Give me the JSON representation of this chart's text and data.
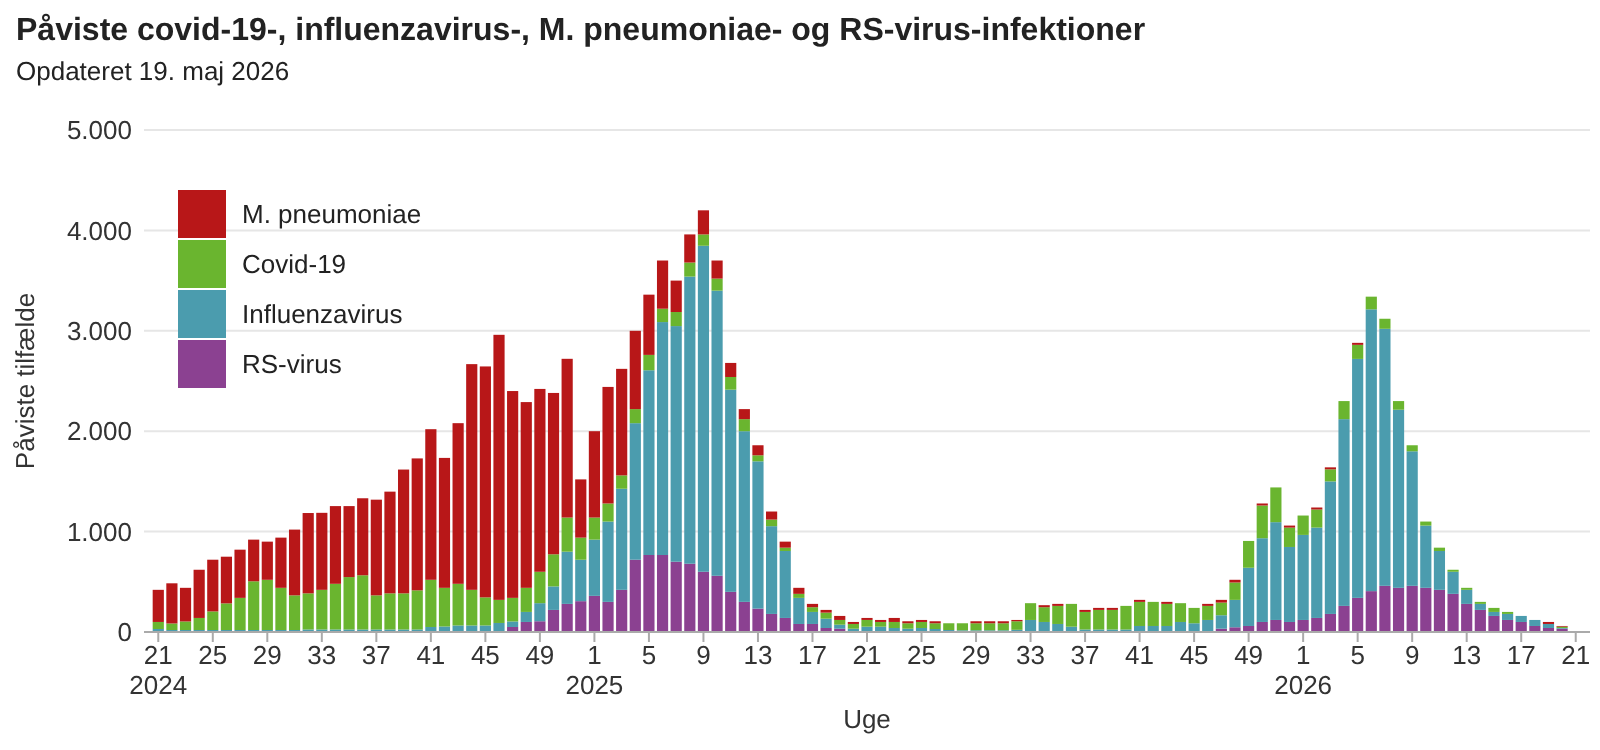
{
  "chart_data": {
    "type": "bar",
    "stacked": true,
    "title": "Påviste covid-19-, influenzavirus-, M. pneumoniae- og RS-virus-infektioner",
    "subtitle": "Opdateret 19. maj 2026",
    "xlabel": "Uge",
    "ylabel": "Påviste tilfælde",
    "categories": [
      "21\n2024",
      null,
      null,
      null,
      "25",
      null,
      null,
      null,
      "29",
      null,
      null,
      null,
      "33",
      null,
      null,
      null,
      "37",
      null,
      null,
      null,
      "41",
      null,
      null,
      null,
      "45",
      null,
      null,
      null,
      "49",
      null,
      null,
      null,
      "1\n2025",
      null,
      null,
      null,
      "5",
      null,
      null,
      null,
      "9",
      null,
      null,
      null,
      "13",
      null,
      null,
      null,
      "17",
      null,
      null,
      null,
      "21",
      null,
      null,
      null,
      "25",
      null,
      null,
      null,
      "29",
      null,
      null,
      null,
      "33",
      null,
      null,
      null,
      "37",
      null,
      null,
      null,
      "41",
      null,
      null,
      null,
      "45",
      null,
      null,
      null,
      "49",
      null,
      null,
      null,
      "1\n2026",
      null,
      null,
      null,
      "5",
      null,
      null,
      null,
      "9",
      null,
      null,
      null,
      "13",
      null,
      null,
      null,
      "17",
      null,
      null,
      null,
      "21"
    ],
    "series": [
      {
        "name": "RS-virus",
        "color": "#8b4191",
        "values": [
          5,
          5,
          5,
          5,
          5,
          5,
          5,
          5,
          5,
          5,
          5,
          5,
          5,
          5,
          5,
          5,
          5,
          5,
          5,
          5,
          5,
          5,
          5,
          5,
          5,
          10,
          50,
          100,
          107,
          220,
          280,
          307,
          360,
          300,
          420,
          720,
          767,
          767,
          700,
          680,
          600,
          560,
          400,
          300,
          233,
          180,
          140,
          80,
          80,
          40,
          33,
          null,
          10,
          10,
          5,
          5,
          5,
          5,
          5,
          5,
          5,
          5,
          5,
          7,
          10,
          10,
          5,
          5,
          5,
          5,
          5,
          5,
          5,
          5,
          5,
          5,
          7,
          7,
          33,
          47,
          60,
          100,
          120,
          100,
          120,
          140,
          180,
          260,
          340,
          407,
          460,
          440,
          460,
          440,
          420,
          380,
          280,
          220,
          160,
          120,
          100,
          60,
          40,
          33,
          null
        ]
      },
      {
        "name": "Influenzavirus",
        "color": "#4b9cae",
        "values": [
          25,
          15,
          15,
          15,
          15,
          15,
          15,
          15,
          15,
          15,
          15,
          20,
          20,
          20,
          20,
          20,
          20,
          20,
          20,
          20,
          45,
          50,
          60,
          60,
          60,
          80,
          55,
          100,
          180,
          234,
          520,
          413,
          560,
          800,
          1007,
          1360,
          1840,
          2320,
          2347,
          2860,
          3247,
          2840,
          2014,
          1700,
          1467,
          874,
          667,
          260,
          120,
          93,
          40,
          33,
          43,
          43,
          35,
          28,
          35,
          25,
          15,
          12,
          12,
          12,
          12,
          15,
          110,
          90,
          75,
          48,
          20,
          20,
          20,
          20,
          55,
          55,
          55,
          95,
          80,
          113,
          134,
          273,
          580,
          834,
          974,
          747,
          847,
          900,
          1320,
          1860,
          2380,
          2807,
          2560,
          1774,
          1340,
          620,
          387,
          220,
          140,
          60,
          40,
          60,
          60,
          60,
          40,
          7,
          null
        ]
      },
      {
        "name": "Covid-19",
        "color": "#6ab52f",
        "values": [
          70,
          65,
          85,
          120,
          185,
          265,
          320,
          485,
          500,
          420,
          345,
          360,
          395,
          455,
          522,
          540,
          340,
          360,
          360,
          390,
          470,
          385,
          415,
          355,
          280,
          230,
          235,
          240,
          313,
          320,
          340,
          220,
          220,
          180,
          133,
          140,
          153,
          133,
          140,
          140,
          113,
          120,
          126,
          120,
          60,
          66,
          33,
          40,
          47,
          60,
          47,
          47,
          67,
          47,
          60,
          54,
          60,
          57,
          67,
          70,
          70,
          70,
          70,
          85,
          167,
          147,
          180,
          227,
          175,
          195,
          195,
          235,
          240,
          240,
          220,
          187,
          153,
          140,
          126,
          173,
          267,
          326,
          346,
          193,
          193,
          180,
          120,
          180,
          140,
          126,
          100,
          86,
          60,
          40,
          33,
          20,
          20,
          20,
          40,
          20,
          0,
          0,
          0,
          13,
          null
        ]
      },
      {
        "name": "M. pneumoniae",
        "color": "#b81718",
        "values": [
          320,
          400,
          335,
          480,
          515,
          465,
          480,
          415,
          380,
          500,
          655,
          800,
          767,
          774,
          707,
          767,
          953,
          1013,
          1233,
          1314,
          1500,
          1294,
          1600,
          2248,
          2300,
          2640,
          2060,
          1850,
          1821,
          1607,
          1581,
          580,
          860,
          1161,
          1061,
          780,
          600,
          480,
          313,
          280,
          240,
          180,
          140,
          100,
          100,
          80,
          60,
          60,
          33,
          27,
          40,
          20,
          20,
          20,
          40,
          20,
          20,
          20,
          0,
          0,
          20,
          20,
          20,
          13,
          0,
          20,
          20,
          0,
          20,
          20,
          20,
          0,
          20,
          0,
          20,
          0,
          0,
          20,
          27,
          27,
          0,
          20,
          0,
          20,
          0,
          20,
          20,
          0,
          20,
          0,
          0,
          0,
          0,
          0,
          0,
          0,
          0,
          0,
          0,
          0,
          0,
          0,
          20,
          7,
          null
        ]
      }
    ],
    "ylim": [
      0,
      5000
    ],
    "yticks": [
      0,
      {
        "value": 1000,
        "label": "1.000"
      },
      {
        "value": 2000,
        "label": "2.000"
      },
      {
        "value": 3000,
        "label": "3.000"
      },
      {
        "value": 4000,
        "label": "4.000"
      },
      {
        "value": 5000,
        "label": "5.000"
      }
    ],
    "grid": "y",
    "legend": "top left"
  }
}
